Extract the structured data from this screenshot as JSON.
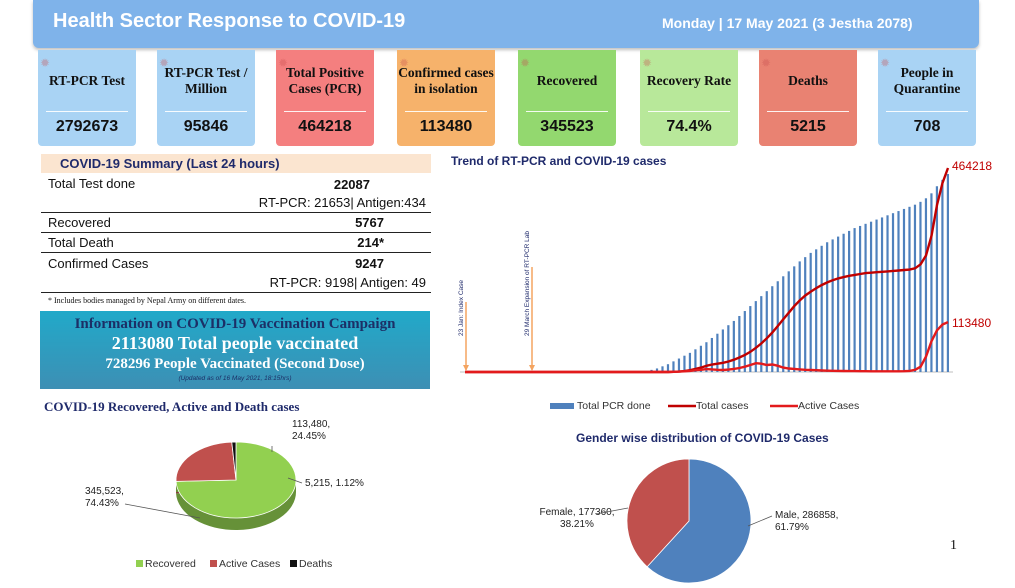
{
  "header": {
    "title": "Health Sector Response to COVID-19",
    "date": "Monday | 17 May 2021 (3 Jestha 2078)"
  },
  "cards": [
    {
      "label": "RT-PCR Test",
      "value": "2792673",
      "color": "#a9d3f4"
    },
    {
      "label": "RT-PCR Test / Million",
      "value": "95846",
      "color": "#a9d3f4"
    },
    {
      "label": "Total Positive Cases (PCR)",
      "value": "464218",
      "color": "#f47f7f"
    },
    {
      "label": "Confirmed cases in isolation",
      "value": "113480",
      "color": "#f6b26b"
    },
    {
      "label": "Recovered",
      "value": "345523",
      "color": "#93d86f"
    },
    {
      "label": "Recovery Rate",
      "value": "74.4%",
      "color": "#b8e89a"
    },
    {
      "label": "Deaths",
      "value": "5215",
      "color": "#e98272"
    },
    {
      "label": "People in Quarantine",
      "value": "708",
      "color": "#a9d3f4"
    }
  ],
  "summary": {
    "title": "COVID-19 Summary (Last 24 hours)",
    "total_test_label": "Total Test done",
    "total_test_value": "22087",
    "total_test_sub": "RT-PCR: 21653| Antigen:434",
    "recovered_label": "Recovered",
    "recovered_value": "5767",
    "death_label": "Total Death",
    "death_value": "214*",
    "confirmed_label": "Confirmed Cases",
    "confirmed_value": "9247",
    "confirmed_sub": "RT-PCR: 9198| Antigen: 49",
    "note": "* Includes bodies managed by Nepal Army on different dates."
  },
  "vaccination": {
    "line1": "Information on COVID-19 Vaccination Campaign",
    "line2": "2113080 Total people vaccinated",
    "line3": "728296 People Vaccinated (Second Dose)",
    "line4": "(Updated as of 16 May 2021, 18:15hrs)"
  },
  "page_number": "1",
  "chart_data": [
    {
      "type": "line",
      "title": "Trend of RT-PCR and COVID-19 cases",
      "series": [
        {
          "name": "Total PCR done",
          "kind": "bar",
          "color": "#4f81bd",
          "values": [
            0,
            0,
            0,
            0,
            0,
            0,
            0,
            0,
            0,
            0,
            0,
            0,
            0,
            0,
            0,
            0,
            0,
            0,
            0,
            0,
            0,
            0,
            0,
            0,
            0,
            0,
            0,
            0,
            0,
            0,
            0,
            0,
            0,
            0,
            30000,
            50000,
            80000,
            110000,
            150000,
            190000,
            230000,
            270000,
            320000,
            370000,
            420000,
            480000,
            540000,
            600000,
            660000,
            720000,
            790000,
            860000,
            930000,
            1000000,
            1070000,
            1140000,
            1210000,
            1280000,
            1350000,
            1420000,
            1490000,
            1560000,
            1620000,
            1680000,
            1730000,
            1780000,
            1830000,
            1870000,
            1910000,
            1950000,
            1990000,
            2030000,
            2060000,
            2090000,
            2120000,
            2150000,
            2180000,
            2210000,
            2240000,
            2270000,
            2300000,
            2330000,
            2360000,
            2400000,
            2450000,
            2520000,
            2620000,
            2710000,
            2792673
          ]
        },
        {
          "name": "Total  cases",
          "kind": "line",
          "color": "#c00000",
          "values": [
            0,
            0,
            0,
            0,
            0,
            0,
            0,
            0,
            0,
            0,
            0,
            0,
            0,
            0,
            0,
            0,
            0,
            0,
            0,
            0,
            0,
            0,
            0,
            0,
            0,
            0,
            0,
            0,
            0,
            0,
            0,
            0,
            0,
            0,
            0,
            0,
            0,
            0,
            500,
            1000,
            2000,
            4000,
            7000,
            10000,
            14000,
            17000,
            19000,
            21000,
            24000,
            28000,
            33000,
            39000,
            46000,
            55000,
            65000,
            77000,
            90000,
            105000,
            120000,
            135000,
            150000,
            163000,
            174000,
            183000,
            191000,
            198000,
            204000,
            209000,
            213000,
            216000,
            219000,
            221000,
            223000,
            225000,
            226000,
            227000,
            228000,
            229000,
            230000,
            231000,
            232000,
            233000,
            236000,
            245000,
            265000,
            310000,
            380000,
            430000,
            464218
          ]
        },
        {
          "name": "Active Cases",
          "kind": "line",
          "color": "#e31a1c",
          "values": [
            0,
            0,
            0,
            0,
            0,
            0,
            0,
            0,
            0,
            0,
            0,
            0,
            0,
            0,
            0,
            0,
            0,
            0,
            0,
            0,
            0,
            0,
            0,
            0,
            0,
            0,
            0,
            0,
            0,
            0,
            0,
            0,
            0,
            0,
            0,
            0,
            0,
            0,
            500,
            1000,
            1500,
            2500,
            4000,
            5000,
            6500,
            6000,
            5000,
            4500,
            5500,
            7000,
            9000,
            12000,
            16000,
            20000,
            19000,
            16000,
            17000,
            14000,
            10000,
            8000,
            7000,
            6000,
            5000,
            4500,
            4000,
            3500,
            3000,
            2700,
            2500,
            2300,
            2100,
            2000,
            1900,
            1800,
            1700,
            1600,
            1500,
            1500,
            1500,
            1600,
            1800,
            2500,
            5000,
            12000,
            35000,
            70000,
            95000,
            108000,
            113480
          ]
        }
      ],
      "end_labels": {
        "total": "464218",
        "active": "113480"
      },
      "annotations": [
        "23 Jan: Index Case",
        "29 March Expansion of RT-PCR Lab"
      ],
      "legend": [
        "Total PCR done",
        "Total  cases",
        "Active Cases"
      ],
      "legend_position": "bottom"
    },
    {
      "type": "pie",
      "title": "COVID-19 Recovered, Active and Death cases",
      "slices": [
        {
          "name": "Recovered",
          "value": 345523,
          "label": "345,523,\n74.43%",
          "color": "#92d050"
        },
        {
          "name": "Active Cases",
          "value": 113480,
          "label": "113,480,\n24.45%",
          "color": "#c0504d"
        },
        {
          "name": "Deaths",
          "value": 5215,
          "label": "5,215, 1.12%",
          "color": "#111111"
        }
      ],
      "legend": [
        "Recovered",
        "Active Cases",
        "Deaths"
      ],
      "legend_position": "bottom"
    },
    {
      "type": "pie",
      "title": "Gender wise distribution of COVID-19 Cases",
      "slices": [
        {
          "name": "Male",
          "value": 286858,
          "label": "Male, 286858,\n61.79%",
          "color": "#4f81bd"
        },
        {
          "name": "Female",
          "value": 177360,
          "label": "Female, 177360,\n38.21%",
          "color": "#c0504d"
        }
      ]
    }
  ]
}
